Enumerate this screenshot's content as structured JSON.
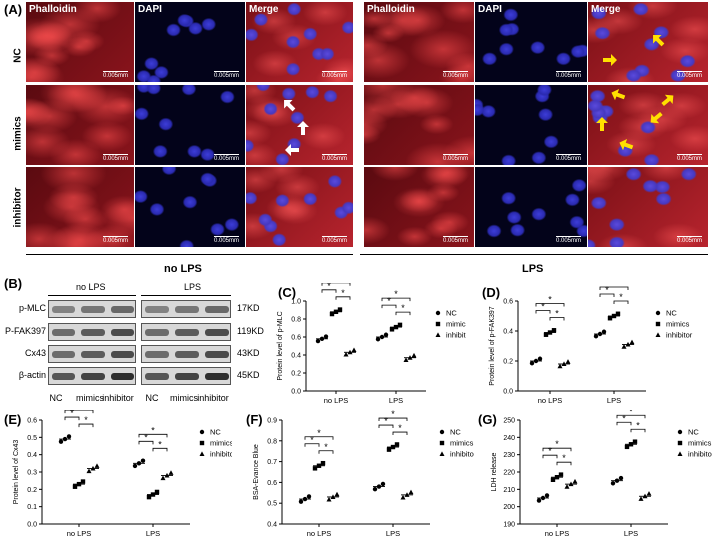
{
  "figure": {
    "panel_labels": {
      "A": "(A)",
      "B": "(B)",
      "C": "(C)",
      "D": "(D)",
      "E": "(E)",
      "F": "(F)",
      "G": "(G)"
    },
    "panelA": {
      "channels": [
        "Phalloidin",
        "DAPI",
        "Merge"
      ],
      "rows": [
        "NC",
        "mimics",
        "inhibitor"
      ],
      "groups": [
        "no LPS",
        "LPS"
      ],
      "scale_bar": "0.005mm",
      "colors": {
        "phalloidin": "#c0202a",
        "dapi": "#1c1c8a",
        "arrow_nolps": "#ffffff",
        "arrow_lps": "#ffe000"
      }
    },
    "panelB": {
      "groups": [
        "no LPS",
        "LPS"
      ],
      "proteins": [
        {
          "name": "p-MLC",
          "size": "17KD"
        },
        {
          "name": "P-FAK397",
          "size": "119KD"
        },
        {
          "name": "Cx43",
          "size": "43KD"
        },
        {
          "name": "β-actin",
          "size": "45KD"
        }
      ],
      "lanes": [
        "NC",
        "mimics",
        "inhibitor",
        "NC",
        "mimics",
        "inhibitor"
      ]
    }
  },
  "chart_data": [
    {
      "panel": "C",
      "type": "scatter",
      "ylabel": "Protein level of p-MLC",
      "categories": [
        "no LPS",
        "LPS"
      ],
      "ylim": [
        0.0,
        1.0
      ],
      "yticks": [
        0.0,
        0.2,
        0.4,
        0.6,
        0.8,
        1.0
      ],
      "series": [
        {
          "name": "NC",
          "marker": "circle",
          "values": [
            0.58,
            0.6
          ]
        },
        {
          "name": "mimics",
          "marker": "square",
          "values": [
            0.88,
            0.71
          ]
        },
        {
          "name": "inhibitor",
          "marker": "triangle",
          "values": [
            0.43,
            0.37
          ]
        }
      ],
      "annotations": "*"
    },
    {
      "panel": "D",
      "type": "scatter",
      "ylabel": "Protein level of p-FAK397",
      "categories": [
        "no LPS",
        "LPS"
      ],
      "ylim": [
        0.0,
        0.6
      ],
      "yticks": [
        0.0,
        0.2,
        0.4,
        0.6
      ],
      "series": [
        {
          "name": "NC",
          "marker": "circle",
          "values": [
            0.2,
            0.38
          ]
        },
        {
          "name": "mimics",
          "marker": "square",
          "values": [
            0.39,
            0.5
          ]
        },
        {
          "name": "inhibitor",
          "marker": "triangle",
          "values": [
            0.18,
            0.31
          ]
        }
      ],
      "annotations": "*"
    },
    {
      "panel": "E",
      "type": "scatter",
      "ylabel": "Protein level of Cx43",
      "categories": [
        "no LPS",
        "LPS"
      ],
      "ylim": [
        0.0,
        0.6
      ],
      "yticks": [
        0.0,
        0.1,
        0.2,
        0.3,
        0.4,
        0.5,
        0.6
      ],
      "series": [
        {
          "name": "NC",
          "marker": "circle",
          "values": [
            0.49,
            0.35
          ]
        },
        {
          "name": "mimics",
          "marker": "square",
          "values": [
            0.23,
            0.17
          ]
        },
        {
          "name": "inhibitor",
          "marker": "triangle",
          "values": [
            0.32,
            0.28
          ]
        }
      ],
      "annotations": "*"
    },
    {
      "panel": "F",
      "type": "scatter",
      "ylabel": "BSA-Evance Blue",
      "categories": [
        "no LPS",
        "LPS"
      ],
      "ylim": [
        0.4,
        0.9
      ],
      "yticks": [
        0.4,
        0.5,
        0.6,
        0.7,
        0.8,
        0.9
      ],
      "series": [
        {
          "name": "NC",
          "marker": "circle",
          "values": [
            0.52,
            0.58
          ]
        },
        {
          "name": "mimics",
          "marker": "square",
          "values": [
            0.68,
            0.77
          ]
        },
        {
          "name": "inhibitor",
          "marker": "triangle",
          "values": [
            0.53,
            0.54
          ]
        }
      ],
      "annotations": "*"
    },
    {
      "panel": "G",
      "type": "scatter",
      "ylabel": "LDH release",
      "categories": [
        "no LPS",
        "LPS"
      ],
      "ylim": [
        190,
        250
      ],
      "yticks": [
        190,
        200,
        210,
        220,
        230,
        240,
        250
      ],
      "series": [
        {
          "name": "NC",
          "marker": "circle",
          "values": [
            205,
            215
          ]
        },
        {
          "name": "mimics",
          "marker": "square",
          "values": [
            217,
            236
          ]
        },
        {
          "name": "inhibitor",
          "marker": "triangle",
          "values": [
            213,
            206
          ]
        }
      ],
      "annotations": "*"
    }
  ]
}
